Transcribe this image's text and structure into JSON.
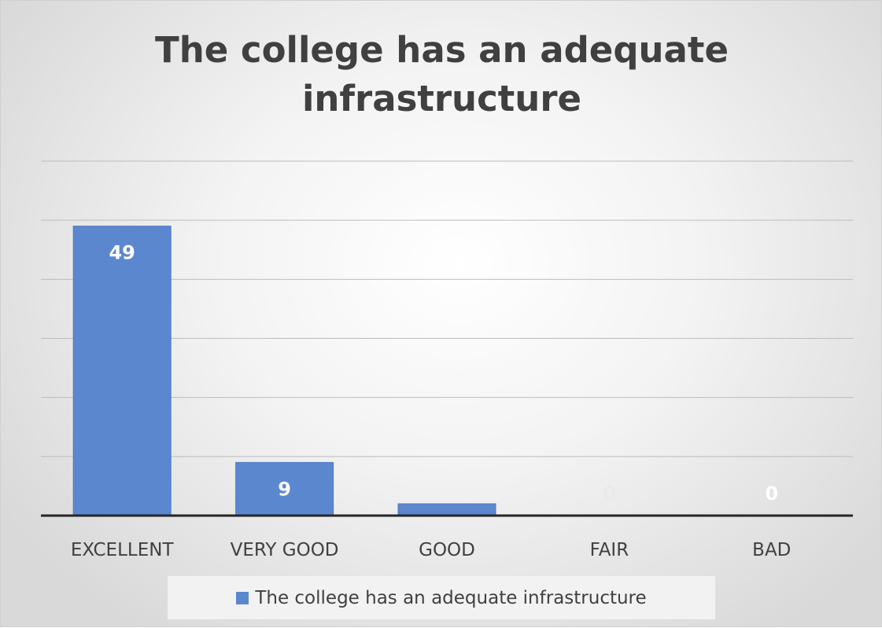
{
  "chart_data": {
    "type": "bar",
    "title_lines": [
      "The college has an adequate",
      "infrastructure"
    ],
    "categories": [
      "EXCELLENT",
      "VERY GOOD",
      "GOOD",
      "FAIR",
      "BAD"
    ],
    "series": [
      {
        "name": "The college has an adequate infrastructure",
        "values": [
          49,
          9,
          2,
          0,
          0
        ],
        "data_labels": [
          "49",
          "9",
          "",
          "0",
          "0"
        ],
        "color": "#5b87cf"
      }
    ],
    "ylim": [
      0,
      60
    ],
    "gridlines": [
      10,
      20,
      30,
      40,
      50,
      60
    ],
    "grid": true,
    "legend_position": "bottom",
    "colors": {
      "bar": "#5b87cf",
      "bar_border": "#4f7ac2",
      "data_label": "#ffffff",
      "faded_label": "#eaeaea",
      "gridline": "#bcbcbc",
      "axis": "#262626",
      "text": "#404040"
    }
  }
}
